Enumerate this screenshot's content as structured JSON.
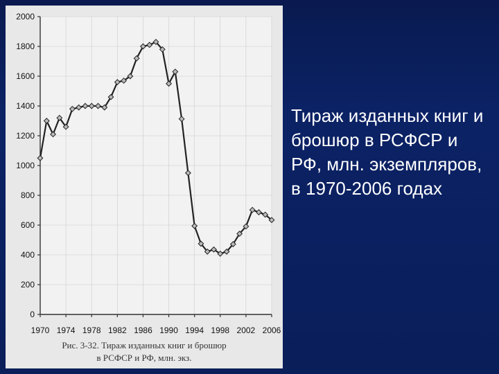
{
  "slide": {
    "background_color": "#0b2265",
    "text_color": "#ffffff"
  },
  "caption": {
    "text": "Тираж изданных книг и брошюр в РСФСР и РФ, млн. экземпляров, в 1970-2006 годах",
    "fontsize": 26,
    "color": "#ffffff"
  },
  "chart": {
    "type": "line",
    "background_color": "#e8e8e8",
    "plot_background": "#f2f2f2",
    "axis_color": "#333333",
    "grid_color": "#cccccc",
    "line_color": "#222222",
    "line_width": 2.2,
    "marker_style": "diamond",
    "marker_size": 6,
    "marker_fill": "#bbbbbb",
    "marker_stroke": "#222222",
    "xlim": [
      1970,
      2006
    ],
    "ylim": [
      0,
      2000
    ],
    "ytick_step": 200,
    "yticks": [
      0,
      200,
      400,
      600,
      800,
      1000,
      1200,
      1400,
      1600,
      1800,
      2000
    ],
    "xtick_step": 4,
    "xticks": [
      1970,
      1974,
      1978,
      1982,
      1986,
      1990,
      1994,
      1998,
      2002,
      2006
    ],
    "label_fontsize": 12,
    "caption_line1": "Рис. 3-32. Тираж изданных книг и брошюр",
    "caption_line2": "в РСФСР и РФ, млн. экз.",
    "caption_fontsize": 13,
    "series": {
      "years": [
        1970,
        1971,
        1972,
        1973,
        1974,
        1975,
        1976,
        1977,
        1978,
        1979,
        1980,
        1981,
        1982,
        1983,
        1984,
        1985,
        1986,
        1987,
        1988,
        1989,
        1990,
        1991,
        1992,
        1993,
        1994,
        1995,
        1996,
        1997,
        1998,
        1999,
        2000,
        2001,
        2002,
        2003,
        2004,
        2005,
        2006
      ],
      "values": [
        1050,
        1300,
        1210,
        1320,
        1260,
        1380,
        1390,
        1400,
        1400,
        1400,
        1390,
        1460,
        1560,
        1570,
        1600,
        1720,
        1800,
        1810,
        1830,
        1780,
        1550,
        1630,
        1313,
        950,
        594,
        475,
        422,
        436,
        408,
        422,
        472,
        542,
        591,
        702,
        686,
        670,
        634
      ]
    }
  }
}
